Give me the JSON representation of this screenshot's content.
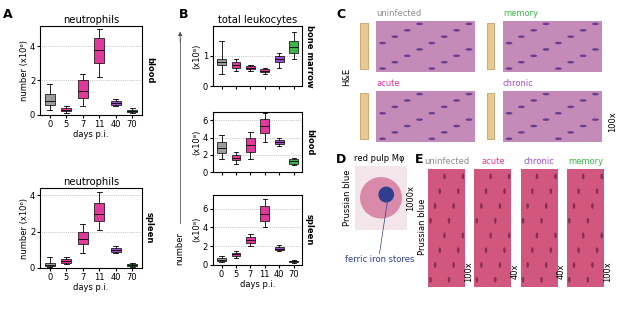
{
  "chart_data": [
    {
      "type": "box",
      "title": "neutrophils",
      "ylabel": "number (x10⁶)",
      "xlabel": "days p.i.",
      "annotations": [
        "blood"
      ],
      "categories": [
        "0",
        "5",
        "7",
        "11",
        "40",
        "70"
      ],
      "boxes": [
        {
          "min": 0.3,
          "q1": 0.6,
          "median": 0.8,
          "q3": 1.2,
          "max": 1.8
        },
        {
          "min": 0.1,
          "q1": 0.2,
          "median": 0.3,
          "q3": 0.4,
          "max": 0.5
        },
        {
          "min": 0.5,
          "q1": 1.0,
          "median": 1.4,
          "q3": 2.0,
          "max": 2.4
        },
        {
          "min": 2.2,
          "q1": 3.0,
          "median": 3.8,
          "q3": 4.5,
          "max": 5.0
        },
        {
          "min": 0.5,
          "q1": 0.6,
          "median": 0.7,
          "q3": 0.8,
          "max": 0.9
        },
        {
          "min": 0.1,
          "q1": 0.15,
          "median": 0.2,
          "q3": 0.3,
          "max": 0.4
        }
      ],
      "colors": [
        "#9b9b9b",
        "#e0399a",
        "#e0399a",
        "#e0399a",
        "#9b4fc8",
        "#3cb44b"
      ],
      "ylim": [
        0,
        5.2
      ],
      "yticks": [
        0,
        2,
        4
      ],
      "grid": true
    },
    {
      "type": "box",
      "title": "neutrophils",
      "ylabel": "number (x10⁶)",
      "xlabel": "days p.i.",
      "annotations": [
        "spleen"
      ],
      "categories": [
        "0",
        "5",
        "7",
        "11",
        "40",
        "70"
      ],
      "boxes": [
        {
          "min": 0.05,
          "q1": 0.1,
          "median": 0.15,
          "q3": 0.3,
          "max": 0.6
        },
        {
          "min": 0.2,
          "q1": 0.3,
          "median": 0.4,
          "q3": 0.5,
          "max": 0.6
        },
        {
          "min": 0.8,
          "q1": 1.3,
          "median": 1.6,
          "q3": 2.0,
          "max": 2.4
        },
        {
          "min": 2.1,
          "q1": 2.6,
          "median": 3.0,
          "q3": 3.6,
          "max": 4.2
        },
        {
          "min": 0.8,
          "q1": 0.9,
          "median": 1.0,
          "q3": 1.1,
          "max": 1.2
        },
        {
          "min": 0.05,
          "q1": 0.1,
          "median": 0.15,
          "q3": 0.2,
          "max": 0.25
        }
      ],
      "colors": [
        "#9b9b9b",
        "#e0399a",
        "#e0399a",
        "#e0399a",
        "#9b4fc8",
        "#3cb44b"
      ],
      "ylim": [
        0,
        4.4
      ],
      "yticks": [
        0,
        2,
        4
      ],
      "grid": true
    },
    {
      "type": "box",
      "title": "total leukocytes",
      "ylabel": "(x10⁸)",
      "annotations": [
        "bone marrow"
      ],
      "tick_labels": "y",
      "categories": [
        "0",
        "5",
        "7",
        "11",
        "40",
        "70"
      ],
      "boxes": [
        {
          "min": 0.4,
          "q1": 0.7,
          "median": 0.8,
          "q3": 0.9,
          "max": 1.5
        },
        {
          "min": 0.5,
          "q1": 0.6,
          "median": 0.7,
          "q3": 0.8,
          "max": 0.9
        },
        {
          "min": 0.5,
          "q1": 0.55,
          "median": 0.6,
          "q3": 0.65,
          "max": 0.7
        },
        {
          "min": 0.4,
          "q1": 0.45,
          "median": 0.5,
          "q3": 0.55,
          "max": 0.6
        },
        {
          "min": 0.6,
          "q1": 0.8,
          "median": 0.9,
          "q3": 1.0,
          "max": 1.1
        },
        {
          "min": 0.9,
          "q1": 1.1,
          "median": 1.3,
          "q3": 1.5,
          "max": 1.8
        }
      ],
      "colors": [
        "#9b9b9b",
        "#e0399a",
        "#e0399a",
        "#e0399a",
        "#9b4fc8",
        "#3cb44b"
      ],
      "ylim": [
        0,
        2
      ],
      "yticks": [
        0,
        1
      ],
      "grid": true
    },
    {
      "type": "box",
      "ylabel": "(x10⁸)",
      "annotations": [
        "blood"
      ],
      "tick_labels": "y",
      "categories": [
        "0",
        "5",
        "7",
        "11",
        "40",
        "70"
      ],
      "boxes": [
        {
          "min": 1.5,
          "q1": 2.2,
          "median": 2.8,
          "q3": 3.5,
          "max": 4.3
        },
        {
          "min": 1.0,
          "q1": 1.4,
          "median": 1.7,
          "q3": 2.0,
          "max": 2.3
        },
        {
          "min": 1.5,
          "q1": 2.3,
          "median": 3.2,
          "q3": 4.0,
          "max": 4.6
        },
        {
          "min": 3.5,
          "q1": 4.5,
          "median": 5.3,
          "q3": 6.2,
          "max": 6.8
        },
        {
          "min": 3.0,
          "q1": 3.3,
          "median": 3.5,
          "q3": 3.7,
          "max": 3.9
        },
        {
          "min": 0.8,
          "q1": 1.0,
          "median": 1.3,
          "q3": 1.5,
          "max": 1.7
        }
      ],
      "colors": [
        "#9b9b9b",
        "#e0399a",
        "#e0399a",
        "#e0399a",
        "#9b4fc8",
        "#3cb44b"
      ],
      "ylim": [
        0,
        7
      ],
      "yticks": [
        0,
        2,
        4,
        6
      ],
      "grid": true
    },
    {
      "type": "box",
      "ylabel": "(x10⁸)",
      "xlabel": "days p.i.",
      "annotations": [
        "spleen"
      ],
      "categories": [
        "0",
        "5",
        "7",
        "11",
        "40",
        "70"
      ],
      "boxes": [
        {
          "min": 0.3,
          "q1": 0.4,
          "median": 0.5,
          "q3": 0.7,
          "max": 0.9
        },
        {
          "min": 0.7,
          "q1": 0.9,
          "median": 1.1,
          "q3": 1.3,
          "max": 1.5
        },
        {
          "min": 2.0,
          "q1": 2.3,
          "median": 2.6,
          "q3": 3.0,
          "max": 3.3
        },
        {
          "min": 4.0,
          "q1": 4.7,
          "median": 5.4,
          "q3": 6.3,
          "max": 7.0
        },
        {
          "min": 1.5,
          "q1": 1.6,
          "median": 1.7,
          "q3": 1.9,
          "max": 2.1
        },
        {
          "min": 0.2,
          "q1": 0.3,
          "median": 0.35,
          "q3": 0.4,
          "max": 0.5
        }
      ],
      "colors": [
        "#9b9b9b",
        "#e0399a",
        "#e0399a",
        "#e0399a",
        "#9b4fc8",
        "#3cb44b"
      ],
      "ylim": [
        0,
        7.5
      ],
      "yticks": [
        0,
        2,
        4,
        6
      ],
      "grid": true
    }
  ],
  "figure": {
    "panel_letters": [
      "A",
      "B",
      "C",
      "D",
      "E"
    ],
    "B_axis_title": "number",
    "C": {
      "stain": "H&E",
      "magnification": "100x",
      "images": [
        {
          "label": "uninfected",
          "color": "#8c8c8c"
        },
        {
          "label": "memory",
          "color": "#3cb44b"
        },
        {
          "label": "acute",
          "color": "#e0399a"
        },
        {
          "label": "chronic",
          "color": "#9b4fc8"
        }
      ]
    },
    "D": {
      "title": "red pulp Mφ",
      "stain": "Prussian blue",
      "magnification": "1000x",
      "annotation": "ferric iron stores"
    },
    "E": {
      "stain": "Prussian blue",
      "images": [
        {
          "label": "uninfected",
          "color": "#8c8c8c",
          "magnification": "100x"
        },
        {
          "label": "acute",
          "color": "#e0399a",
          "magnification": "40x"
        },
        {
          "label": "chronic",
          "color": "#9b4fc8",
          "magnification": "40x"
        },
        {
          "label": "memory",
          "color": "#3cb44b",
          "magnification": "100x"
        }
      ]
    }
  }
}
